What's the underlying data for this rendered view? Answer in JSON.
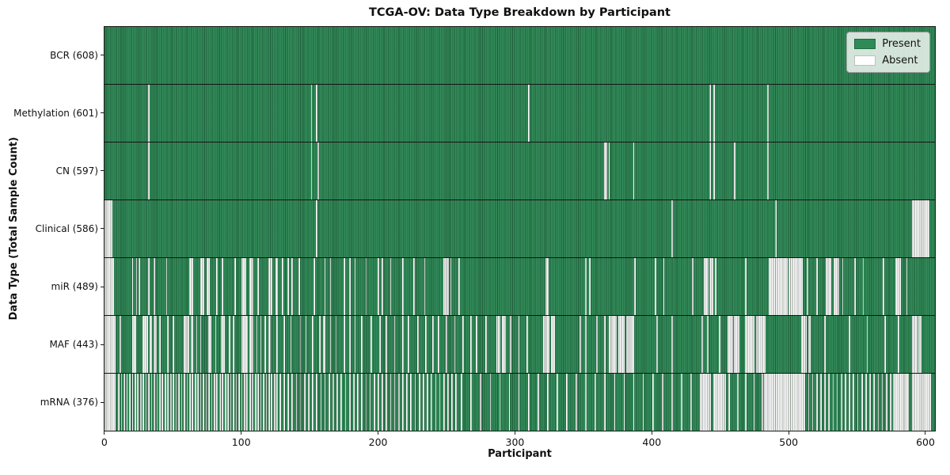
{
  "figure": {
    "title": "TCGA-OV: Data Type Breakdown by Participant",
    "xlabel": "Participant",
    "ylabel": "Data Type (Total Sample Count)"
  },
  "legend": {
    "present_label": "Present",
    "absent_label": "Absent"
  },
  "colors": {
    "present": "#2e8b57",
    "absent": "#fbfbfb",
    "row_separator": "#141414",
    "plot_border": "#1a1a1a"
  },
  "chart_data": {
    "type": "heatmap",
    "title": "TCGA-OV: Data Type Breakdown by Participant",
    "xlabel": "Participant",
    "ylabel": "Data Type (Total Sample Count)",
    "legend_position": "upper right",
    "grid": false,
    "n_participants": 608,
    "x_ticks": [
      0,
      100,
      200,
      300,
      400,
      500,
      600
    ],
    "x_range": [
      -0.5,
      607.5
    ],
    "legend": [
      {
        "label": "Present",
        "color": "#2e8b57"
      },
      {
        "label": "Absent",
        "color": "#ffffff"
      }
    ],
    "rows": [
      {
        "label": "BCR (608)",
        "name": "bcr",
        "present_count": 608,
        "absent": []
      },
      {
        "label": "Methylation (601)",
        "name": "methylation",
        "present_count": 601,
        "absent": [
          [
            32
          ],
          [
            151
          ],
          [
            155
          ],
          [
            310
          ],
          [
            443
          ],
          [
            446
          ],
          [
            485
          ]
        ]
      },
      {
        "label": "CN (597)",
        "name": "cn",
        "present_count": 597,
        "absent": [
          [
            32
          ],
          [
            151
          ],
          [
            156
          ],
          [
            366,
            367
          ],
          [
            369
          ],
          [
            387
          ],
          [
            443
          ],
          [
            446
          ],
          [
            461
          ],
          [
            485
          ]
        ]
      },
      {
        "label": "Clinical (586)",
        "name": "clinical",
        "present_count": 586,
        "absent": [
          [
            0,
            5
          ],
          [
            155
          ],
          [
            415
          ],
          [
            491
          ],
          [
            591,
            603
          ]
        ]
      },
      {
        "label": "miR (489)",
        "name": "mir",
        "present_count": 489,
        "absent": [
          [
            0,
            6
          ],
          [
            20
          ],
          [
            23
          ],
          [
            25
          ],
          [
            32
          ],
          [
            36
          ],
          [
            45
          ],
          [
            62,
            64
          ],
          [
            70,
            72
          ],
          [
            75,
            76
          ],
          [
            82
          ],
          [
            86
          ],
          [
            95
          ],
          [
            100,
            103
          ],
          [
            106,
            108
          ],
          [
            112
          ],
          [
            120,
            122
          ],
          [
            125,
            126
          ],
          [
            130
          ],
          [
            134
          ],
          [
            137
          ],
          [
            142
          ],
          [
            153
          ],
          [
            161
          ],
          [
            165
          ],
          [
            175
          ],
          [
            179
          ],
          [
            183
          ],
          [
            191
          ],
          [
            200
          ],
          [
            203
          ],
          [
            209
          ],
          [
            218
          ],
          [
            226
          ],
          [
            234
          ],
          [
            248,
            251
          ],
          [
            253
          ],
          [
            259
          ],
          [
            323,
            324
          ],
          [
            352
          ],
          [
            355
          ],
          [
            388
          ],
          [
            403
          ],
          [
            409
          ],
          [
            430
          ],
          [
            439,
            441
          ],
          [
            443,
            445
          ],
          [
            447
          ],
          [
            469
          ],
          [
            486,
            499
          ],
          [
            501,
            510
          ],
          [
            514
          ],
          [
            521
          ],
          [
            528,
            531
          ],
          [
            534,
            537
          ],
          [
            540
          ],
          [
            549
          ],
          [
            555
          ],
          [
            570
          ],
          [
            579,
            582
          ],
          [
            587
          ]
        ]
      },
      {
        "label": "MAF (443)",
        "name": "maf",
        "present_count": 443,
        "absent": [
          [
            0,
            7
          ],
          [
            11
          ],
          [
            20,
            22
          ],
          [
            28,
            31
          ],
          [
            33,
            34
          ],
          [
            36,
            37
          ],
          [
            40
          ],
          [
            46
          ],
          [
            50
          ],
          [
            58,
            61
          ],
          [
            63,
            64
          ],
          [
            67
          ],
          [
            70
          ],
          [
            76,
            77
          ],
          [
            81
          ],
          [
            85,
            87
          ],
          [
            91
          ],
          [
            94
          ],
          [
            100,
            104
          ],
          [
            106,
            108
          ],
          [
            111
          ],
          [
            114
          ],
          [
            117
          ],
          [
            120,
            121
          ],
          [
            126
          ],
          [
            131
          ],
          [
            136
          ],
          [
            143
          ],
          [
            147
          ],
          [
            152
          ],
          [
            157
          ],
          [
            160,
            161
          ],
          [
            165
          ],
          [
            169
          ],
          [
            175
          ],
          [
            179
          ],
          [
            183
          ],
          [
            188
          ],
          [
            195
          ],
          [
            201
          ],
          [
            206
          ],
          [
            212
          ],
          [
            218
          ],
          [
            222
          ],
          [
            229
          ],
          [
            235
          ],
          [
            240
          ],
          [
            244
          ],
          [
            250
          ],
          [
            256
          ],
          [
            262
          ],
          [
            268
          ],
          [
            272
          ],
          [
            279
          ],
          [
            287,
            289
          ],
          [
            291,
            293
          ],
          [
            297
          ],
          [
            303
          ],
          [
            309
          ],
          [
            321,
            325
          ],
          [
            327,
            329
          ],
          [
            348
          ],
          [
            352
          ],
          [
            360
          ],
          [
            366
          ],
          [
            369,
            374
          ],
          [
            376,
            380
          ],
          [
            382,
            387
          ],
          [
            404
          ],
          [
            415
          ],
          [
            437
          ],
          [
            441
          ],
          [
            450
          ],
          [
            456,
            459
          ],
          [
            461,
            464
          ],
          [
            469,
            475
          ],
          [
            477,
            483
          ],
          [
            510,
            513
          ],
          [
            515,
            516
          ],
          [
            527
          ],
          [
            545
          ],
          [
            558
          ],
          [
            571
          ],
          [
            581
          ],
          [
            591,
            594
          ],
          [
            596,
            597
          ]
        ]
      },
      {
        "label": "mRNA (376)",
        "name": "mrna",
        "present_count": 376,
        "absent": [
          [
            0,
            7
          ],
          [
            10,
            129,
            2
          ],
          [
            131,
            259,
            3
          ],
          [
            261,
            429,
            7
          ],
          [
            436,
            443
          ],
          [
            446,
            454
          ],
          [
            457,
            481,
            6
          ],
          [
            483,
            512
          ],
          [
            515,
            575,
            3
          ],
          [
            577,
            588
          ],
          [
            591,
            604
          ]
        ]
      }
    ]
  }
}
